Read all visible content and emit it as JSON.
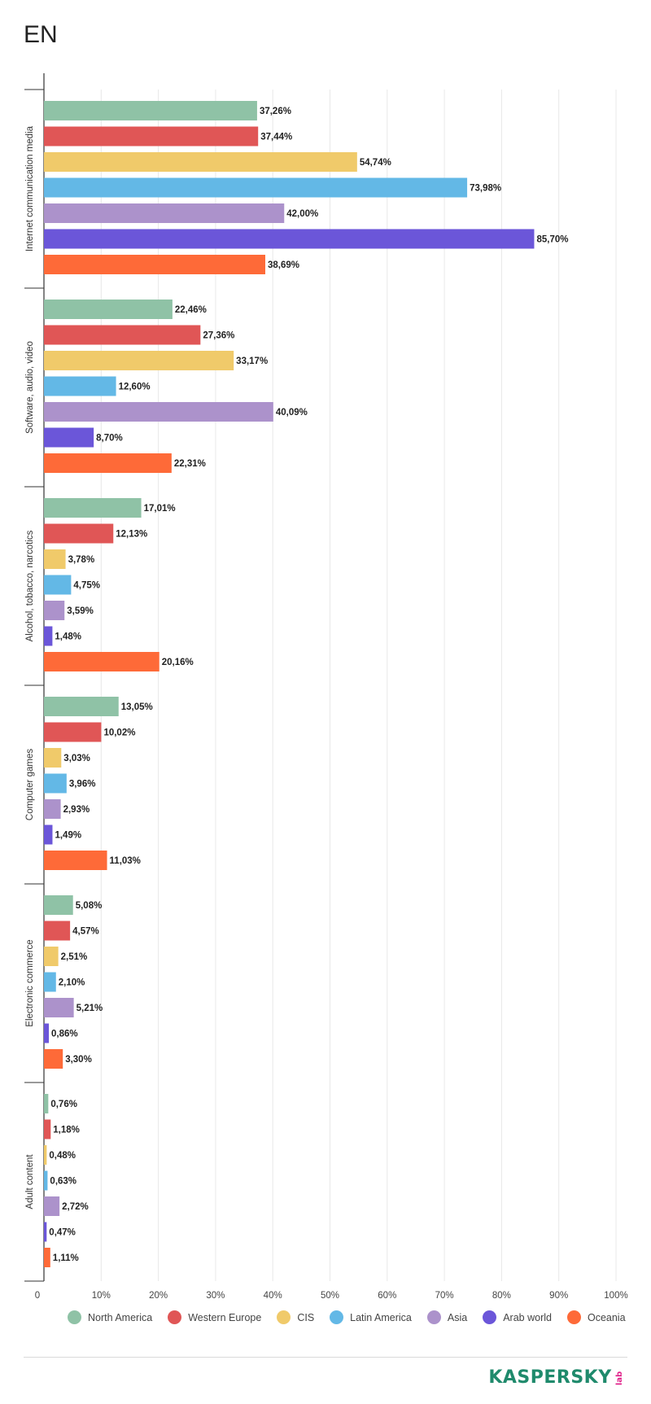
{
  "header": {
    "title": "EN"
  },
  "chart_data": {
    "type": "bar",
    "orientation": "horizontal",
    "categories": [
      "Internet communication media",
      "Software, audio, video",
      "Alcohol, tobacco, narcotics",
      "Computer games",
      "Electronic commerce",
      "Adult content"
    ],
    "series": [
      {
        "name": "North America",
        "color": "#8fc2a6",
        "values": [
          37.26,
          22.46,
          17.01,
          13.05,
          5.08,
          0.76
        ],
        "labels": [
          "37,26%",
          "22,46%",
          "17,01%",
          "13,05%",
          "5,08%",
          "0,76%"
        ]
      },
      {
        "name": "Western Europe",
        "color": "#e05656",
        "values": [
          37.44,
          27.36,
          12.13,
          10.02,
          4.57,
          1.18
        ],
        "labels": [
          "37,44%",
          "27,36%",
          "12,13%",
          "10,02%",
          "4,57%",
          "1,18%"
        ]
      },
      {
        "name": "CIS",
        "color": "#f0ca6a",
        "values": [
          54.74,
          33.17,
          3.78,
          3.03,
          2.51,
          0.48
        ],
        "labels": [
          "54,74%",
          "33,17%",
          "3,78%",
          "3,03%",
          "2,51%",
          "0,48%"
        ]
      },
      {
        "name": "Latin America",
        "color": "#63b8e6",
        "values": [
          73.98,
          12.6,
          4.75,
          3.96,
          2.1,
          0.63
        ],
        "labels": [
          "73,98%",
          "12,60%",
          "4,75%",
          "3,96%",
          "2,10%",
          "0,63%"
        ]
      },
      {
        "name": "Asia",
        "color": "#ac92cb",
        "values": [
          42.0,
          40.09,
          3.59,
          2.93,
          5.21,
          2.72
        ],
        "labels": [
          "42,00%",
          "40,09%",
          "3,59%",
          "2,93%",
          "5,21%",
          "2,72%"
        ]
      },
      {
        "name": "Arab world",
        "color": "#6b56d9",
        "values": [
          85.7,
          8.7,
          1.48,
          1.49,
          0.86,
          0.47
        ],
        "labels": [
          "85,70%",
          "8,70%",
          "1,48%",
          "1,49%",
          "0,86%",
          "0,47%"
        ]
      },
      {
        "name": "Oceania",
        "color": "#fe6a38",
        "values": [
          38.69,
          22.31,
          20.16,
          11.03,
          3.3,
          1.11
        ],
        "labels": [
          "38,69%",
          "22,31%",
          "20,16%",
          "11,03%",
          "3,30%",
          "1,11%"
        ]
      }
    ],
    "xlim": [
      0,
      100
    ],
    "x_ticks": [
      "0",
      "10%",
      "20%",
      "30%",
      "40%",
      "50%",
      "60%",
      "70%",
      "80%",
      "90%",
      "100%"
    ],
    "grid": true,
    "legend_position": "bottom"
  },
  "footer": {
    "logo_text": "KASPERSKY",
    "logo_sub": "lab"
  }
}
